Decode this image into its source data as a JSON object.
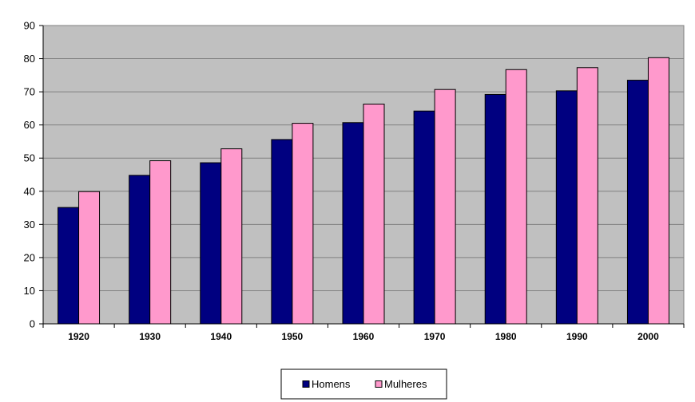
{
  "chart_data": {
    "type": "bar",
    "title": "",
    "xlabel": "",
    "ylabel": "",
    "categories": [
      "1920",
      "1930",
      "1940",
      "1950",
      "1960",
      "1970",
      "1980",
      "1990",
      "2000"
    ],
    "series": [
      {
        "name": "Homens",
        "color": "#000080",
        "values": [
          35.1,
          44.8,
          48.6,
          55.6,
          60.7,
          64.2,
          69.2,
          70.3,
          73.5
        ]
      },
      {
        "name": "Mulheres",
        "color": "#ff99cc",
        "values": [
          39.9,
          49.2,
          52.8,
          60.5,
          66.3,
          70.7,
          76.7,
          77.3,
          80.3
        ]
      }
    ],
    "ylim": [
      0,
      90
    ],
    "yticks": [
      "0",
      "10",
      "20",
      "30",
      "40",
      "50",
      "60",
      "70",
      "80",
      "90"
    ],
    "grid": true,
    "plot_background": "#c0c0c0",
    "legend_position": "bottom-center"
  }
}
